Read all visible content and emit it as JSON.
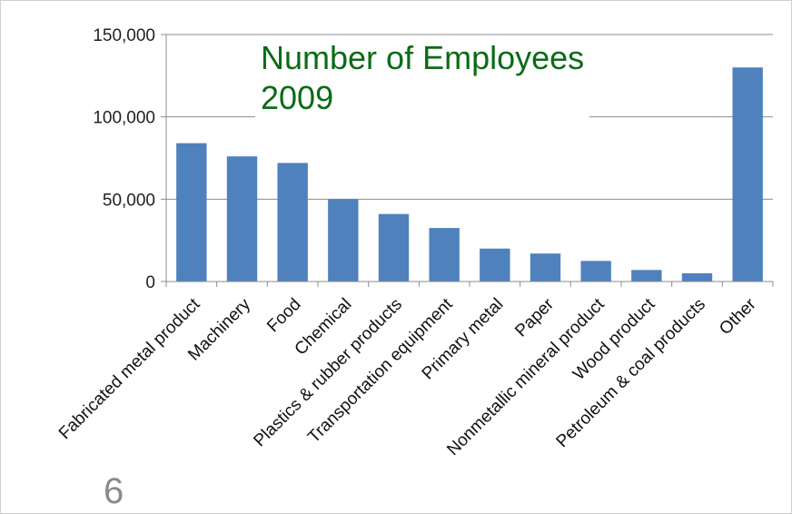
{
  "chart_data": {
    "type": "bar",
    "title_lines": [
      "Number of Employees",
      "2009"
    ],
    "categories": [
      "Fabricated metal product",
      "Machinery",
      "Food",
      "Chemical",
      "Plastics & rubber products",
      "Transportation equipment",
      "Primary metal",
      "Paper",
      "Nonmetallic mineral product",
      "Wood product",
      "Petroleum & coal products",
      "Other"
    ],
    "values": [
      84000,
      76000,
      72000,
      50000,
      41000,
      32500,
      20000,
      17000,
      12500,
      7000,
      5000,
      130000
    ],
    "yticks": [
      0,
      50000,
      100000,
      150000
    ],
    "ytick_labels": [
      "0",
      "50,000",
      "100,000",
      "150,000"
    ],
    "ylim": [
      0,
      150000
    ],
    "bar_color": "#4f81bd",
    "grid": true,
    "legend": "none"
  },
  "slide": {
    "number": "6"
  },
  "colors": {
    "title": "#0b6b16",
    "gridline": "#8c8c8c",
    "page_number": "#8a8a8a"
  }
}
